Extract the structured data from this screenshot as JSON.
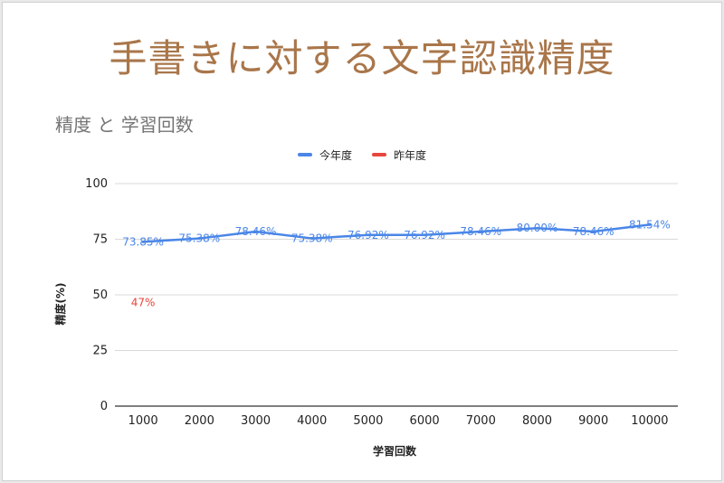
{
  "slide_title": "手書きに対する文字認識精度",
  "chart_data": {
    "type": "line",
    "title": "精度 と 学習回数",
    "xlabel": "学習回数",
    "ylabel": "精度(%)",
    "categories": [
      "1000",
      "2000",
      "3000",
      "4000",
      "5000",
      "6000",
      "7000",
      "8000",
      "9000",
      "10000"
    ],
    "ylim": [
      0,
      100
    ],
    "yticks": [
      "0",
      "25",
      "50",
      "75",
      "100"
    ],
    "grid": true,
    "legend_position": "top",
    "series": [
      {
        "name": "今年度",
        "color": "#4a86e8",
        "values": [
          73.85,
          75.38,
          78.46,
          75.38,
          76.92,
          76.92,
          78.46,
          80.0,
          78.46,
          81.54
        ],
        "labels": [
          "73.85%",
          "75.38%",
          "78.46%",
          "75.38%",
          "76.92%",
          "76.92%",
          "78.46%",
          "80.00%",
          "78.46%",
          "81.54%"
        ]
      },
      {
        "name": "昨年度",
        "color": "#e8453c",
        "values": [
          47,
          null,
          null,
          null,
          null,
          null,
          null,
          null,
          null,
          null
        ],
        "labels": [
          "47%",
          null,
          null,
          null,
          null,
          null,
          null,
          null,
          null,
          null
        ]
      }
    ]
  }
}
